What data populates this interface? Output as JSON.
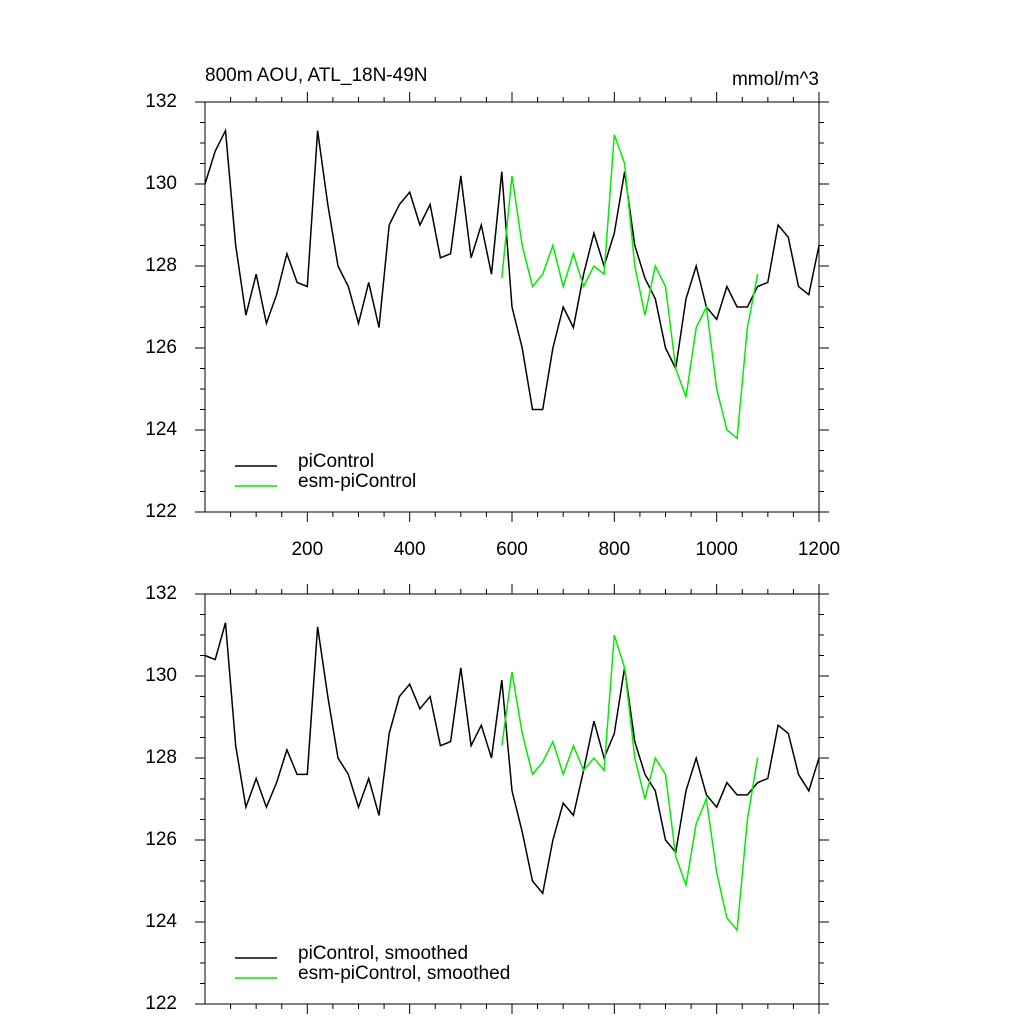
{
  "chart_data": [
    {
      "type": "line",
      "title": "800m AOU, ATL_18N-49N",
      "units": "mmol/m^3",
      "xlim": [
        0,
        1200
      ],
      "xticks": [
        200,
        400,
        600,
        800,
        1000,
        1200
      ],
      "show_xtick_labels": true,
      "ylim": [
        122,
        132
      ],
      "yticks": [
        122,
        124,
        126,
        128,
        130,
        132
      ],
      "legend": "lower left",
      "series": [
        {
          "name": "piControl",
          "color": "#000000",
          "x": [
            0,
            20,
            40,
            60,
            80,
            100,
            120,
            140,
            160,
            180,
            200,
            220,
            240,
            260,
            280,
            300,
            320,
            340,
            360,
            380,
            400,
            420,
            440,
            460,
            480,
            500,
            520,
            540,
            560,
            580,
            600,
            620,
            640,
            660,
            680,
            700,
            720,
            740,
            760,
            780,
            800,
            820,
            840,
            860,
            880,
            900,
            920,
            940,
            960,
            980,
            1000,
            1020,
            1040,
            1060,
            1080,
            1100,
            1120,
            1140,
            1160,
            1180,
            1200
          ],
          "values": [
            130,
            130.8,
            131.3,
            128.5,
            126.8,
            127.8,
            126.6,
            127.3,
            128.3,
            127.6,
            127.5,
            131.3,
            129.5,
            128,
            127.5,
            126.6,
            127.6,
            126.5,
            129,
            129.5,
            129.8,
            129,
            129.5,
            128.2,
            128.3,
            130.2,
            128.2,
            129,
            127.8,
            130.3,
            127,
            126,
            124.5,
            124.5,
            126,
            127,
            126.5,
            127.8,
            128.8,
            128,
            128.8,
            130.3,
            128.5,
            127.7,
            127.2,
            126,
            125.5,
            127.2,
            128,
            127,
            126.7,
            127.5,
            127,
            127,
            127.5,
            127.6,
            129,
            128.7,
            127.5,
            127.3,
            128.5
          ]
        },
        {
          "name": "esm-piControl",
          "color": "#00ee00",
          "x": [
            580,
            600,
            620,
            640,
            660,
            680,
            700,
            720,
            740,
            760,
            780,
            800,
            820,
            840,
            860,
            880,
            900,
            920,
            940,
            960,
            980,
            1000,
            1020,
            1040,
            1060,
            1080
          ],
          "values": [
            127.7,
            130.2,
            128.5,
            127.5,
            127.8,
            128.5,
            127.5,
            128.3,
            127.5,
            128,
            127.8,
            131.2,
            130.5,
            128,
            126.8,
            128,
            127.5,
            125.5,
            124.8,
            126.5,
            127,
            125,
            124,
            123.8,
            126.5,
            127.8
          ]
        }
      ]
    },
    {
      "type": "line",
      "xlim": [
        0,
        1200
      ],
      "xticks": [
        200,
        400,
        600,
        800,
        1000,
        1200
      ],
      "show_xtick_labels": false,
      "ylim": [
        122,
        132
      ],
      "yticks": [
        122,
        124,
        126,
        128,
        130,
        132
      ],
      "legend": "lower left",
      "series": [
        {
          "name": "piControl, smoothed",
          "color": "#000000",
          "x": [
            0,
            20,
            40,
            60,
            80,
            100,
            120,
            140,
            160,
            180,
            200,
            220,
            240,
            260,
            280,
            300,
            320,
            340,
            360,
            380,
            400,
            420,
            440,
            460,
            480,
            500,
            520,
            540,
            560,
            580,
            600,
            620,
            640,
            660,
            680,
            700,
            720,
            740,
            760,
            780,
            800,
            820,
            840,
            860,
            880,
            900,
            920,
            940,
            960,
            980,
            1000,
            1020,
            1040,
            1060,
            1080,
            1100,
            1120,
            1140,
            1160,
            1180,
            1200
          ],
          "values": [
            130.5,
            130.4,
            131.3,
            128.3,
            126.8,
            127.5,
            126.8,
            127.4,
            128.2,
            127.6,
            127.6,
            131.2,
            129.5,
            128,
            127.6,
            126.8,
            127.5,
            126.6,
            128.6,
            129.5,
            129.8,
            129.2,
            129.5,
            128.3,
            128.4,
            130.2,
            128.3,
            128.8,
            128,
            129.9,
            127.2,
            126.2,
            125,
            124.7,
            126,
            126.9,
            126.6,
            127.7,
            128.9,
            128,
            128.6,
            130.2,
            128.4,
            127.6,
            127.2,
            126,
            125.7,
            127.2,
            128,
            127.1,
            126.8,
            127.4,
            127.1,
            127.1,
            127.4,
            127.5,
            128.8,
            128.6,
            127.6,
            127.2,
            128
          ]
        },
        {
          "name": "esm-piControl, smoothed",
          "color": "#00ee00",
          "x": [
            580,
            600,
            620,
            640,
            660,
            680,
            700,
            720,
            740,
            760,
            780,
            800,
            820,
            840,
            860,
            880,
            900,
            920,
            940,
            960,
            980,
            1000,
            1020,
            1040,
            1060,
            1080
          ],
          "values": [
            128.3,
            130.1,
            128.6,
            127.6,
            127.9,
            128.4,
            127.6,
            128.3,
            127.7,
            128,
            127.7,
            131,
            130.2,
            128,
            127,
            128,
            127.6,
            125.6,
            124.9,
            126.4,
            127,
            125.2,
            124.1,
            123.8,
            126.5,
            128
          ]
        }
      ]
    }
  ]
}
